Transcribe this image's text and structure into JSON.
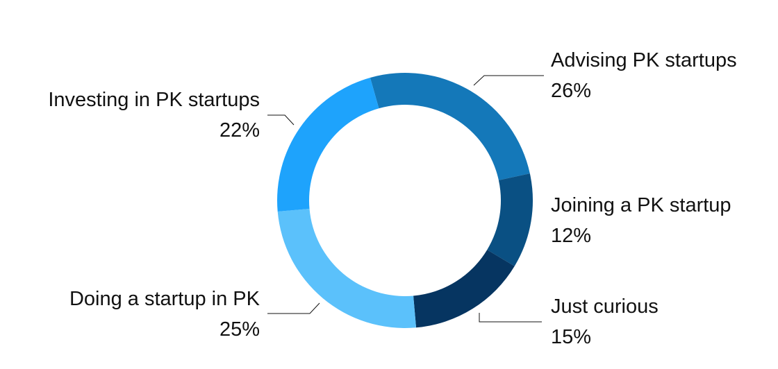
{
  "chart_data": {
    "type": "pie",
    "variant": "donut",
    "categories": [
      "Advising PK startups",
      "Joining a PK startup",
      "Just curious",
      "Doing a startup in PK",
      "Investing in PK startups"
    ],
    "values": [
      26,
      12,
      15,
      25,
      22
    ],
    "value_labels": [
      "26%",
      "12%",
      "15%",
      "25%",
      "22%"
    ],
    "colors": [
      "#1478b9",
      "#0a5083",
      "#063561",
      "#5bc1fb",
      "#1ea3fc"
    ],
    "legend": "none",
    "labels_position": "outside-with-leader-lines"
  }
}
